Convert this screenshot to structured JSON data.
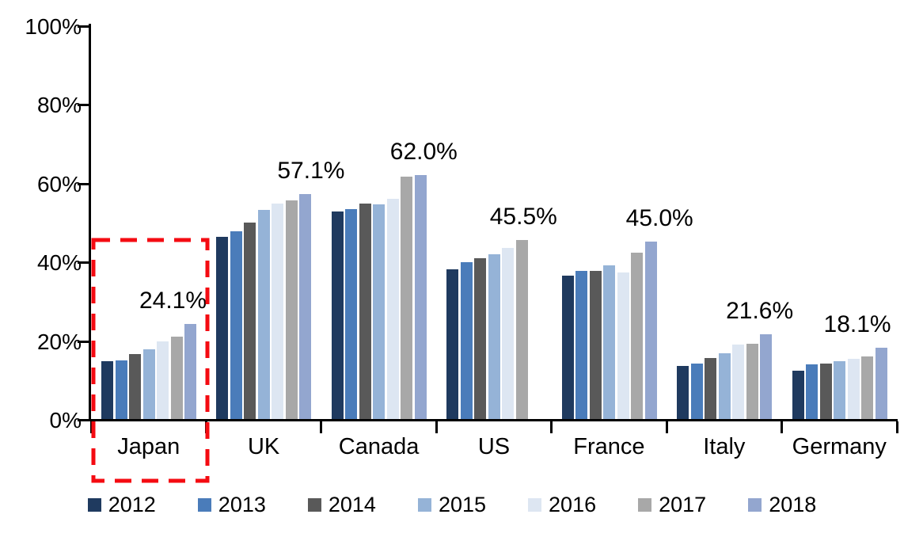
{
  "chart_data": {
    "type": "bar",
    "title": "",
    "xlabel": "",
    "ylabel": "",
    "ylim": [
      0,
      100
    ],
    "grid": false,
    "legend_position": "bottom",
    "yticks": [
      "0%",
      "20%",
      "40%",
      "60%",
      "80%",
      "100%"
    ],
    "categories": [
      "Japan",
      "UK",
      "Canada",
      "US",
      "France",
      "Italy",
      "Germany"
    ],
    "series": [
      {
        "name": "2012",
        "color": "#1F3A5F",
        "values": [
          14.7,
          46.3,
          52.8,
          38.0,
          36.4,
          13.4,
          12.3
        ]
      },
      {
        "name": "2013",
        "color": "#4A7CBA",
        "values": [
          14.9,
          47.7,
          53.3,
          39.9,
          37.7,
          14.1,
          13.8
        ]
      },
      {
        "name": "2014",
        "color": "#595959",
        "values": [
          16.5,
          49.9,
          54.8,
          40.8,
          37.6,
          15.4,
          14.1
        ]
      },
      {
        "name": "2015",
        "color": "#95B3D7",
        "values": [
          17.8,
          53.1,
          54.5,
          41.9,
          39.1,
          16.8,
          14.6
        ]
      },
      {
        "name": "2016",
        "color": "#DDE6F2",
        "values": [
          19.8,
          54.7,
          56.0,
          43.5,
          37.3,
          18.9,
          15.3
        ]
      },
      {
        "name": "2017",
        "color": "#A8A8A8",
        "values": [
          20.9,
          55.6,
          61.5,
          45.5,
          42.2,
          19.1,
          15.8
        ]
      },
      {
        "name": "2018",
        "color": "#93A6CF",
        "values": [
          24.1,
          57.1,
          62.0,
          null,
          45.0,
          21.6,
          18.1
        ]
      }
    ],
    "data_labels": [
      "24.1%",
      "57.1%",
      "62.0%",
      "45.5%",
      "45.0%",
      "21.6%",
      "18.1%"
    ],
    "highlight": {
      "category": "Japan",
      "style": "red-dashed-rectangle",
      "color": "#F40B12"
    },
    "axis_color": "#000000"
  }
}
